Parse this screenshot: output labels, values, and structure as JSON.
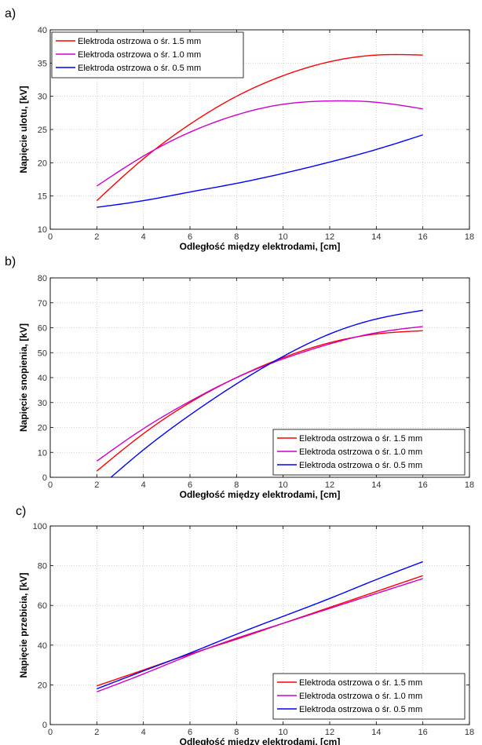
{
  "chart_data": [
    {
      "panel": "a)",
      "type": "line",
      "xlabel": "Odległość między elektrodami, [cm]",
      "ylabel": "Napięcie ulotu, [kV]",
      "xlim": [
        0,
        18
      ],
      "ylim": [
        10,
        40
      ],
      "xticks": [
        "0",
        "2",
        "4",
        "6",
        "8",
        "10",
        "12",
        "14",
        "16",
        "18"
      ],
      "yticks": [
        "10",
        "15",
        "20",
        "25",
        "30",
        "35",
        "40"
      ],
      "grid": true,
      "legend_position": "top-left",
      "x": [
        2,
        4,
        6,
        8,
        10,
        12,
        14,
        16
      ],
      "series": [
        {
          "name": "Elektroda ostrzowa o śr. 1.5 mm",
          "color": "#ff0000",
          "values": [
            14.3,
            20.6,
            25.8,
            30.0,
            33.1,
            35.2,
            36.2,
            36.2
          ]
        },
        {
          "name": "Elektroda ostrzowa o śr. 1.0 mm",
          "color": "#cc00cc",
          "values": [
            16.5,
            21.0,
            24.6,
            27.2,
            28.8,
            29.3,
            29.1,
            28.1
          ]
        },
        {
          "name": "Elektroda ostrzowa o śr. 0.5 mm",
          "color": "#0000ff",
          "values": [
            13.3,
            14.3,
            15.6,
            16.9,
            18.4,
            20.1,
            22.0,
            24.2
          ]
        }
      ]
    },
    {
      "panel": "b)",
      "type": "line",
      "xlabel": "Odległość między elektrodami, [cm]",
      "ylabel": "Napięcie snopienia, [kV]",
      "xlim": [
        0,
        18
      ],
      "ylim": [
        0,
        80
      ],
      "xticks": [
        "0",
        "2",
        "4",
        "6",
        "8",
        "10",
        "12",
        "14",
        "16",
        "18"
      ],
      "yticks": [
        "0",
        "10",
        "20",
        "30",
        "40",
        "50",
        "60",
        "70",
        "80"
      ],
      "grid": true,
      "legend_position": "bottom-right",
      "x": [
        2,
        4,
        6,
        8,
        10,
        12,
        14,
        16
      ],
      "series": [
        {
          "name": "Elektroda ostrzowa o śr. 1.5 mm",
          "color": "#ff0000",
          "values": [
            2.5,
            17.5,
            30.0,
            40.0,
            48.0,
            54.0,
            57.5,
            58.8
          ]
        },
        {
          "name": "Elektroda ostrzowa o śr. 1.0 mm",
          "color": "#cc00cc",
          "values": [
            6.5,
            19.5,
            30.5,
            40.0,
            47.5,
            53.5,
            58.0,
            60.5
          ]
        },
        {
          "name": "Elektroda ostrzowa o śr. 0.5 mm",
          "color": "#0000ff",
          "values": [
            -5.0,
            11.0,
            25.0,
            37.5,
            48.5,
            57.5,
            63.5,
            67.0
          ]
        }
      ]
    },
    {
      "panel": "c)",
      "type": "line",
      "xlabel": "Odległość między elektrodami, [cm]",
      "ylabel": "Napięcie przebicia, [kV]",
      "xlim": [
        0,
        18
      ],
      "ylim": [
        0,
        100
      ],
      "xticks": [
        "0",
        "2",
        "4",
        "6",
        "8",
        "10",
        "12",
        "14",
        "16",
        "18"
      ],
      "yticks": [
        "0",
        "20",
        "40",
        "60",
        "80",
        "100"
      ],
      "grid": true,
      "legend_position": "bottom-right",
      "x": [
        2,
        4,
        6,
        8,
        10,
        12,
        14,
        16
      ],
      "series": [
        {
          "name": "Elektroda ostrzowa o śr. 1.5 mm",
          "color": "#ff0000",
          "values": [
            19.5,
            27.5,
            35.5,
            43.0,
            51.0,
            59.0,
            67.0,
            75.0
          ]
        },
        {
          "name": "Elektroda ostrzowa o śr. 1.0 mm",
          "color": "#cc00cc",
          "values": [
            16.5,
            25.5,
            35.0,
            43.5,
            51.0,
            58.5,
            66.0,
            73.5
          ]
        },
        {
          "name": "Elektroda ostrzowa o śr. 0.5 mm",
          "color": "#0000ff",
          "values": [
            18.0,
            27.0,
            36.0,
            45.5,
            54.5,
            63.5,
            73.0,
            82.0
          ]
        }
      ]
    }
  ]
}
